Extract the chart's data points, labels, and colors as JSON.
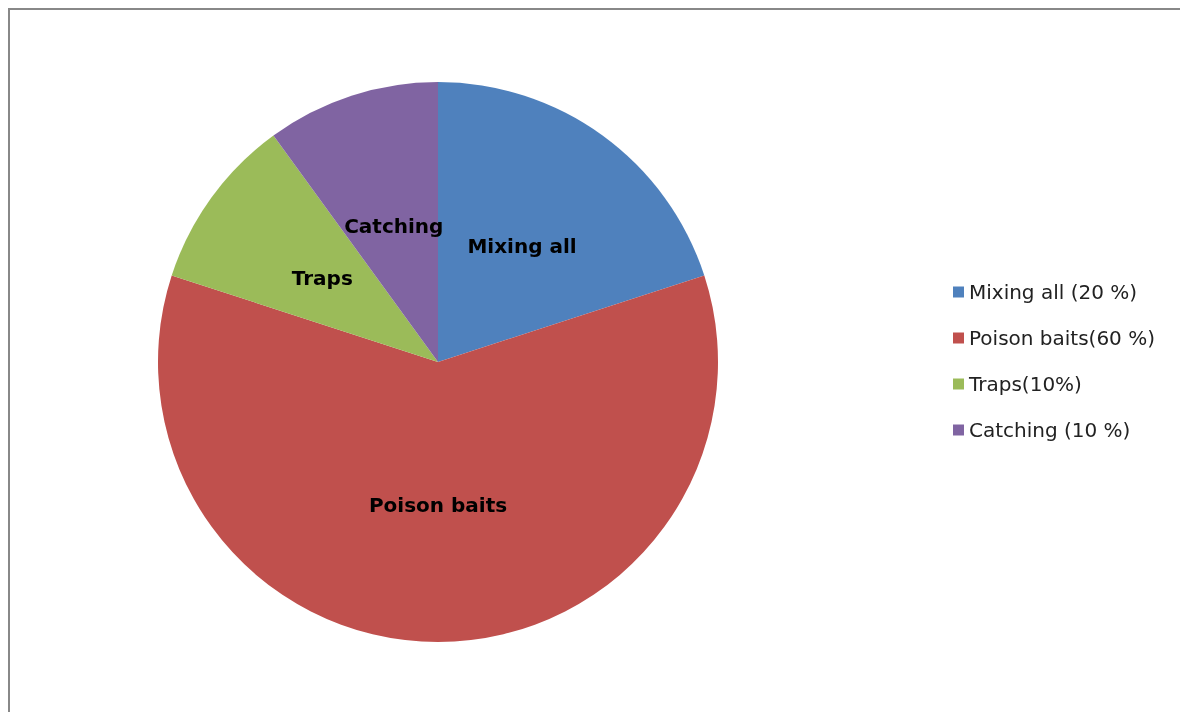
{
  "chart_data": {
    "type": "pie",
    "categories": [
      "Mixing all (20 %)",
      "Poison baits(60 %)",
      "Traps(10%)",
      "Catching (10 %)"
    ],
    "values": [
      20,
      60,
      10,
      10
    ],
    "colors": [
      "#4f81bd",
      "#c0504d",
      "#9bbb59",
      "#8064a2"
    ],
    "value_labels": [
      "Mixing all",
      "Poison baits",
      "Traps",
      "Catching"
    ],
    "legend": "right"
  }
}
